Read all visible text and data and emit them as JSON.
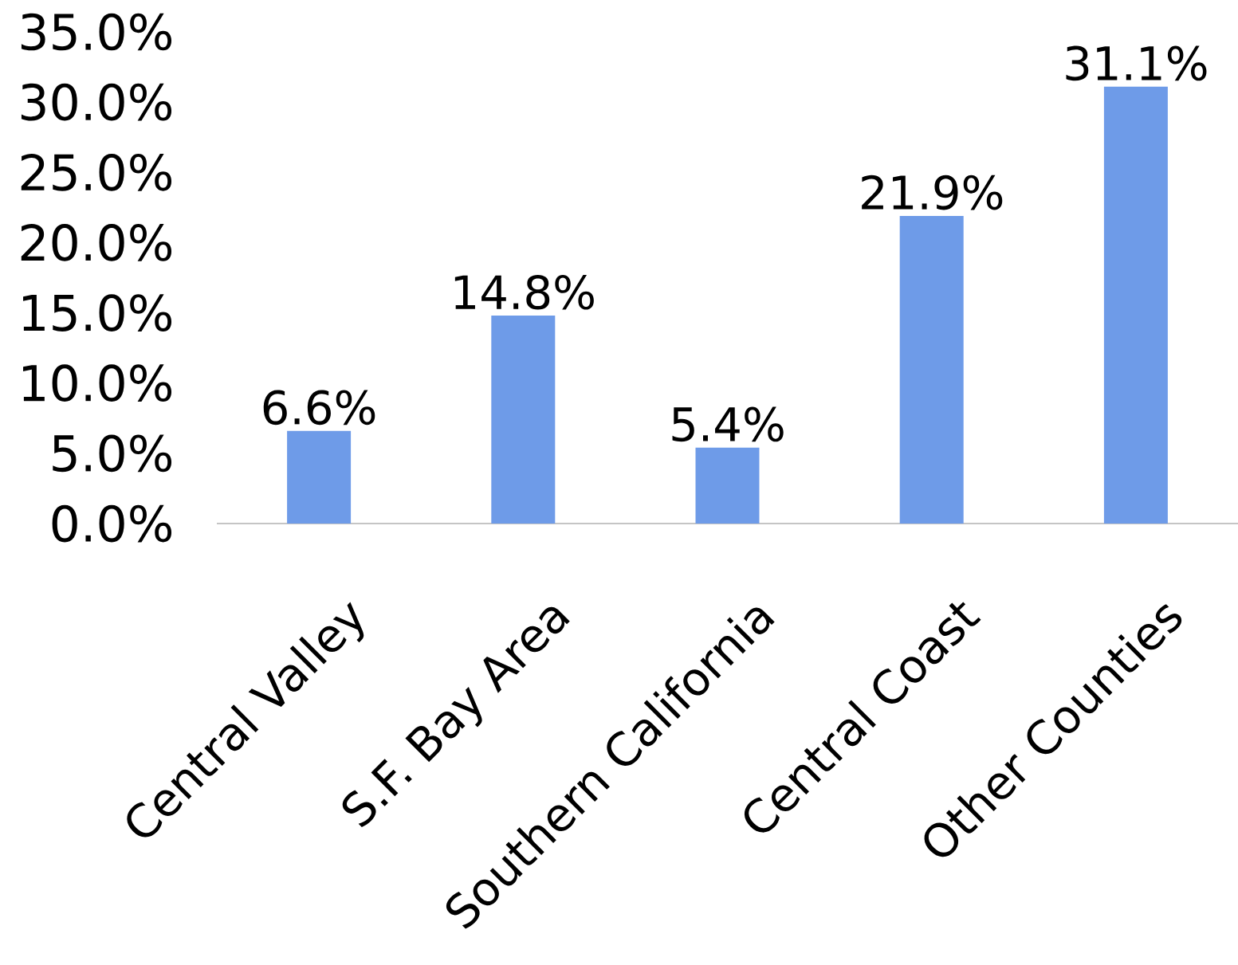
{
  "chart_data": {
    "type": "bar",
    "categories": [
      "Central Valley",
      "S.F. Bay Area",
      "Southern California",
      "Central Coast",
      "Other Counties"
    ],
    "values": [
      6.6,
      14.8,
      5.4,
      21.9,
      31.1
    ],
    "value_labels": [
      "6.6%",
      "14.8%",
      "5.4%",
      "21.9%",
      "31.1%"
    ],
    "color": "#6e9be8",
    "ylim": [
      0,
      35
    ],
    "yticks": [
      {
        "value": 0,
        "label": "0.0%"
      },
      {
        "value": 5,
        "label": "5.0%"
      },
      {
        "value": 10,
        "label": "10.0%"
      },
      {
        "value": 15,
        "label": "15.0%"
      },
      {
        "value": 20,
        "label": "20.0%"
      },
      {
        "value": 25,
        "label": "25.0%"
      },
      {
        "value": 30,
        "label": "30.0%"
      },
      {
        "value": 35,
        "label": "35.0%"
      }
    ],
    "grid": false
  }
}
